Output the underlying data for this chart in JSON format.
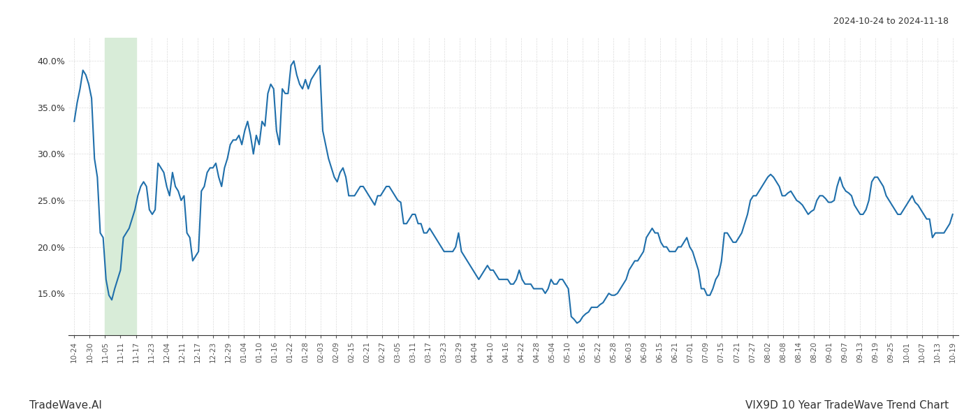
{
  "title_top_right": "2024-10-24 to 2024-11-18",
  "title_bottom_right": "VIX9D 10 Year TradeWave Trend Chart",
  "title_bottom_left": "TradeWave.AI",
  "line_color": "#1f6fab",
  "line_width": 1.5,
  "background_color": "#ffffff",
  "grid_color": "#cccccc",
  "highlight_color": "#d8ecd8",
  "yticks": [
    0.15,
    0.2,
    0.25,
    0.3,
    0.35,
    0.4
  ],
  "ylim": [
    0.105,
    0.425
  ],
  "xtick_labels": [
    "10-24",
    "10-30",
    "11-05",
    "11-11",
    "11-17",
    "11-23",
    "12-04",
    "12-11",
    "12-17",
    "12-23",
    "12-29",
    "01-04",
    "01-10",
    "01-16",
    "01-22",
    "01-28",
    "02-03",
    "02-09",
    "02-15",
    "02-21",
    "02-27",
    "03-05",
    "03-11",
    "03-17",
    "03-23",
    "03-29",
    "04-04",
    "04-10",
    "04-16",
    "04-22",
    "04-28",
    "05-04",
    "05-10",
    "05-16",
    "05-22",
    "05-28",
    "06-03",
    "06-09",
    "06-15",
    "06-21",
    "07-01",
    "07-09",
    "07-15",
    "07-21",
    "07-27",
    "08-02",
    "08-08",
    "08-14",
    "08-20",
    "09-01",
    "09-07",
    "09-13",
    "09-19",
    "09-25",
    "10-01",
    "10-07",
    "10-13",
    "10-19"
  ],
  "highlight_x_start_label": "11-05",
  "highlight_x_end_label": "11-17",
  "values": [
    0.335,
    0.355,
    0.37,
    0.39,
    0.385,
    0.375,
    0.36,
    0.295,
    0.275,
    0.215,
    0.21,
    0.165,
    0.148,
    0.143,
    0.155,
    0.165,
    0.175,
    0.21,
    0.215,
    0.22,
    0.23,
    0.24,
    0.255,
    0.265,
    0.27,
    0.265,
    0.24,
    0.235,
    0.24,
    0.29,
    0.285,
    0.28,
    0.265,
    0.255,
    0.28,
    0.265,
    0.26,
    0.25,
    0.255,
    0.215,
    0.21,
    0.185,
    0.19,
    0.195,
    0.26,
    0.265,
    0.28,
    0.285,
    0.285,
    0.29,
    0.275,
    0.265,
    0.285,
    0.295,
    0.31,
    0.315,
    0.315,
    0.32,
    0.31,
    0.325,
    0.335,
    0.32,
    0.3,
    0.32,
    0.31,
    0.335,
    0.33,
    0.365,
    0.375,
    0.37,
    0.325,
    0.31,
    0.37,
    0.365,
    0.365,
    0.395,
    0.4,
    0.385,
    0.375,
    0.37,
    0.38,
    0.37,
    0.38,
    0.385,
    0.39,
    0.395,
    0.325,
    0.31,
    0.295,
    0.285,
    0.275,
    0.27,
    0.28,
    0.285,
    0.275,
    0.255,
    0.255,
    0.255,
    0.26,
    0.265,
    0.265,
    0.26,
    0.255,
    0.25,
    0.245,
    0.255,
    0.255,
    0.26,
    0.265,
    0.265,
    0.26,
    0.255,
    0.25,
    0.248,
    0.225,
    0.225,
    0.23,
    0.235,
    0.235,
    0.225,
    0.225,
    0.215,
    0.215,
    0.22,
    0.215,
    0.21,
    0.205,
    0.2,
    0.195,
    0.195,
    0.195,
    0.195,
    0.2,
    0.215,
    0.195,
    0.19,
    0.185,
    0.18,
    0.175,
    0.17,
    0.165,
    0.17,
    0.175,
    0.18,
    0.175,
    0.175,
    0.17,
    0.165,
    0.165,
    0.165,
    0.165,
    0.16,
    0.16,
    0.165,
    0.175,
    0.165,
    0.16,
    0.16,
    0.16,
    0.155,
    0.155,
    0.155,
    0.155,
    0.15,
    0.155,
    0.165,
    0.16,
    0.16,
    0.165,
    0.165,
    0.16,
    0.155,
    0.125,
    0.122,
    0.118,
    0.12,
    0.125,
    0.128,
    0.13,
    0.135,
    0.135,
    0.135,
    0.138,
    0.14,
    0.145,
    0.15,
    0.148,
    0.148,
    0.15,
    0.155,
    0.16,
    0.165,
    0.175,
    0.18,
    0.185,
    0.185,
    0.19,
    0.195,
    0.21,
    0.215,
    0.22,
    0.215,
    0.215,
    0.205,
    0.2,
    0.2,
    0.195,
    0.195,
    0.195,
    0.2,
    0.2,
    0.205,
    0.21,
    0.2,
    0.195,
    0.185,
    0.175,
    0.155,
    0.155,
    0.148,
    0.148,
    0.155,
    0.165,
    0.17,
    0.185,
    0.215,
    0.215,
    0.21,
    0.205,
    0.205,
    0.21,
    0.215,
    0.225,
    0.235,
    0.25,
    0.255,
    0.255,
    0.26,
    0.265,
    0.27,
    0.275,
    0.278,
    0.275,
    0.27,
    0.265,
    0.255,
    0.255,
    0.258,
    0.26,
    0.255,
    0.25,
    0.248,
    0.245,
    0.24,
    0.235,
    0.238,
    0.24,
    0.25,
    0.255,
    0.255,
    0.252,
    0.248,
    0.248,
    0.25,
    0.265,
    0.275,
    0.265,
    0.26,
    0.258,
    0.255,
    0.245,
    0.24,
    0.235,
    0.235,
    0.24,
    0.25,
    0.27,
    0.275,
    0.275,
    0.27,
    0.265,
    0.255,
    0.25,
    0.245,
    0.24,
    0.235,
    0.235,
    0.24,
    0.245,
    0.25,
    0.255,
    0.248,
    0.245,
    0.24,
    0.235,
    0.23,
    0.23,
    0.21,
    0.215,
    0.215,
    0.215,
    0.215,
    0.22,
    0.225,
    0.235
  ]
}
